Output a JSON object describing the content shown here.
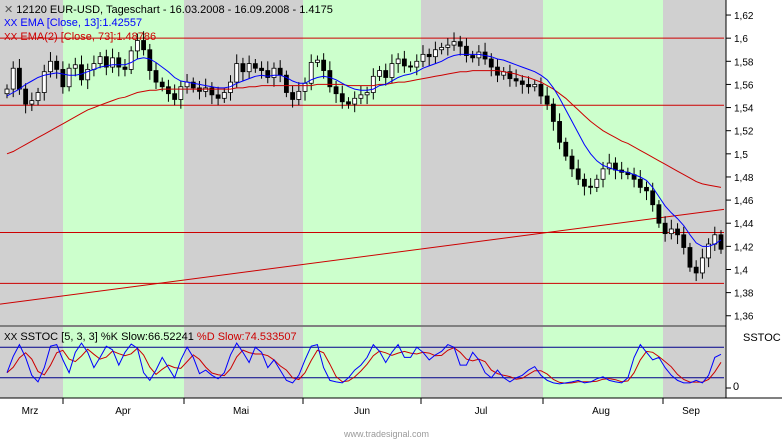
{
  "header": {
    "icon": "cross-icon",
    "line1": "12120  EUR-USD, Tageschart - 16.03.2008 - 16.09.2008 - 1.4175",
    "line2": "EMA [Close, 13]:1.42557",
    "line2_color": "#0000ff",
    "line3": "EMA(2) [Close, 73]:1.48786",
    "line3_color": "#cc0000"
  },
  "oscillator": {
    "title_k": "SSTOC [5, 3, 3] %K Slow:66.52241",
    "title_d": "%D Slow:74.533507",
    "label": "SSTOC",
    "zero": "0"
  },
  "watermark": "www.tradesignal.com",
  "colors": {
    "up_candle": "#ffffff",
    "down_candle": "#000000",
    "ema13": "#0000ff",
    "ema73": "#cc0000",
    "hlines": "#cc0000",
    "band_green": "#ccffcc",
    "band_gray": "#d0d0d0",
    "k_line": "#0000ff",
    "d_line": "#cc0000"
  },
  "chart_data": {
    "type": "candlestick",
    "title": "12120  EUR-USD, Tageschart - 16.03.2008 - 16.09.2008 - 1.4175",
    "y_ticks": [
      "1,62",
      "1,6",
      "1,58",
      "1,56",
      "1,54",
      "1,52",
      "1,5",
      "1,48",
      "1,46",
      "1,44",
      "1,42",
      "1,4",
      "1,38",
      "1,36"
    ],
    "ylim": [
      1.352,
      1.633
    ],
    "months": [
      "Mrz",
      "Apr",
      "Mai",
      "Jun",
      "Jul",
      "Aug",
      "Sep"
    ],
    "horizontal_levels": [
      1.6,
      1.542,
      1.432,
      1.388
    ],
    "trendline": {
      "from": 1.37,
      "to": 1.452
    },
    "close": [
      1.556,
      1.574,
      1.556,
      1.543,
      1.546,
      1.553,
      1.571,
      1.58,
      1.573,
      1.558,
      1.574,
      1.577,
      1.564,
      1.573,
      1.578,
      1.584,
      1.575,
      1.583,
      1.575,
      1.573,
      1.589,
      1.598,
      1.59,
      1.572,
      1.562,
      1.558,
      1.552,
      1.547,
      1.558,
      1.562,
      1.557,
      1.554,
      1.557,
      1.551,
      1.548,
      1.553,
      1.562,
      1.578,
      1.571,
      1.578,
      1.574,
      1.572,
      1.566,
      1.574,
      1.568,
      1.553,
      1.547,
      1.554,
      1.561,
      1.579,
      1.581,
      1.572,
      1.558,
      1.552,
      1.545,
      1.543,
      1.548,
      1.551,
      1.553,
      1.567,
      1.572,
      1.566,
      1.578,
      1.582,
      1.576,
      1.575,
      1.58,
      1.586,
      1.584,
      1.59,
      1.592,
      1.594,
      1.597,
      1.593,
      1.585,
      1.583,
      1.588,
      1.582,
      1.575,
      1.568,
      1.571,
      1.565,
      1.563,
      1.56,
      1.558,
      1.56,
      1.55,
      1.543,
      1.528,
      1.51,
      1.498,
      1.487,
      1.478,
      1.472,
      1.471,
      1.478,
      1.487,
      1.492,
      1.486,
      1.484,
      1.482,
      1.478,
      1.471,
      1.468,
      1.456,
      1.44,
      1.431,
      1.435,
      1.43,
      1.419,
      1.402,
      1.397,
      1.41,
      1.422,
      1.43,
      1.4175
    ],
    "ema13": [
      1.55,
      1.553,
      1.556,
      1.56,
      1.563,
      1.566,
      1.568,
      1.569,
      1.57,
      1.569,
      1.568,
      1.568,
      1.569,
      1.571,
      1.573,
      1.575,
      1.576,
      1.577,
      1.577,
      1.577,
      1.579,
      1.582,
      1.583,
      1.582,
      1.579,
      1.575,
      1.571,
      1.566,
      1.563,
      1.562,
      1.561,
      1.56,
      1.559,
      1.558,
      1.557,
      1.557,
      1.558,
      1.561,
      1.563,
      1.565,
      1.567,
      1.568,
      1.567,
      1.568,
      1.568,
      1.566,
      1.563,
      1.561,
      1.561,
      1.564,
      1.566,
      1.567,
      1.566,
      1.564,
      1.561,
      1.558,
      1.556,
      1.555,
      1.555,
      1.556,
      1.559,
      1.56,
      1.563,
      1.566,
      1.568,
      1.569,
      1.571,
      1.574,
      1.576,
      1.578,
      1.58,
      1.583,
      1.585,
      1.586,
      1.586,
      1.586,
      1.586,
      1.585,
      1.584,
      1.582,
      1.581,
      1.579,
      1.577,
      1.575,
      1.573,
      1.571,
      1.568,
      1.564,
      1.557,
      1.548,
      1.538,
      1.528,
      1.518,
      1.508,
      1.5,
      1.494,
      1.49,
      1.488,
      1.486,
      1.485,
      1.484,
      1.482,
      1.48,
      1.477,
      1.471,
      1.463,
      1.455,
      1.449,
      1.444,
      1.438,
      1.43,
      1.423,
      1.42,
      1.42,
      1.422,
      1.42557
    ],
    "ema73": [
      1.5,
      1.502,
      1.505,
      1.508,
      1.511,
      1.514,
      1.517,
      1.52,
      1.523,
      1.526,
      1.529,
      1.532,
      1.535,
      1.538,
      1.54,
      1.542,
      1.544,
      1.546,
      1.548,
      1.549,
      1.551,
      1.553,
      1.554,
      1.555,
      1.555,
      1.556,
      1.556,
      1.556,
      1.556,
      1.556,
      1.556,
      1.556,
      1.556,
      1.556,
      1.556,
      1.556,
      1.556,
      1.557,
      1.557,
      1.558,
      1.558,
      1.559,
      1.559,
      1.559,
      1.559,
      1.559,
      1.559,
      1.559,
      1.559,
      1.559,
      1.56,
      1.56,
      1.56,
      1.56,
      1.56,
      1.559,
      1.559,
      1.559,
      1.559,
      1.559,
      1.56,
      1.56,
      1.561,
      1.562,
      1.562,
      1.563,
      1.564,
      1.565,
      1.566,
      1.567,
      1.568,
      1.569,
      1.57,
      1.571,
      1.571,
      1.572,
      1.572,
      1.572,
      1.572,
      1.572,
      1.571,
      1.57,
      1.569,
      1.567,
      1.566,
      1.564,
      1.562,
      1.559,
      1.556,
      1.552,
      1.548,
      1.543,
      1.538,
      1.533,
      1.528,
      1.524,
      1.52,
      1.517,
      1.514,
      1.511,
      1.509,
      1.506,
      1.503,
      1.5,
      1.497,
      1.494,
      1.491,
      1.488,
      1.485,
      1.482,
      1.479,
      1.476,
      1.474,
      1.473,
      1.472,
      1.48786
    ],
    "stoch_k": [
      30,
      62,
      85,
      60,
      25,
      12,
      40,
      82,
      85,
      55,
      30,
      70,
      88,
      70,
      40,
      60,
      82,
      75,
      45,
      70,
      86,
      78,
      30,
      15,
      35,
      60,
      40,
      20,
      55,
      80,
      60,
      28,
      35,
      25,
      18,
      30,
      65,
      88,
      70,
      50,
      80,
      70,
      40,
      55,
      35,
      15,
      10,
      25,
      55,
      82,
      85,
      40,
      15,
      12,
      10,
      20,
      35,
      45,
      60,
      85,
      72,
      50,
      70,
      85,
      60,
      60,
      80,
      70,
      55,
      65,
      72,
      85,
      80,
      45,
      45,
      70,
      55,
      30,
      20,
      35,
      20,
      12,
      20,
      25,
      35,
      42,
      25,
      15,
      10,
      8,
      10,
      12,
      15,
      10,
      12,
      18,
      22,
      15,
      12,
      10,
      20,
      60,
      85,
      70,
      55,
      60,
      40,
      25,
      15,
      10,
      10,
      15,
      10,
      25,
      60,
      66
    ]
  }
}
